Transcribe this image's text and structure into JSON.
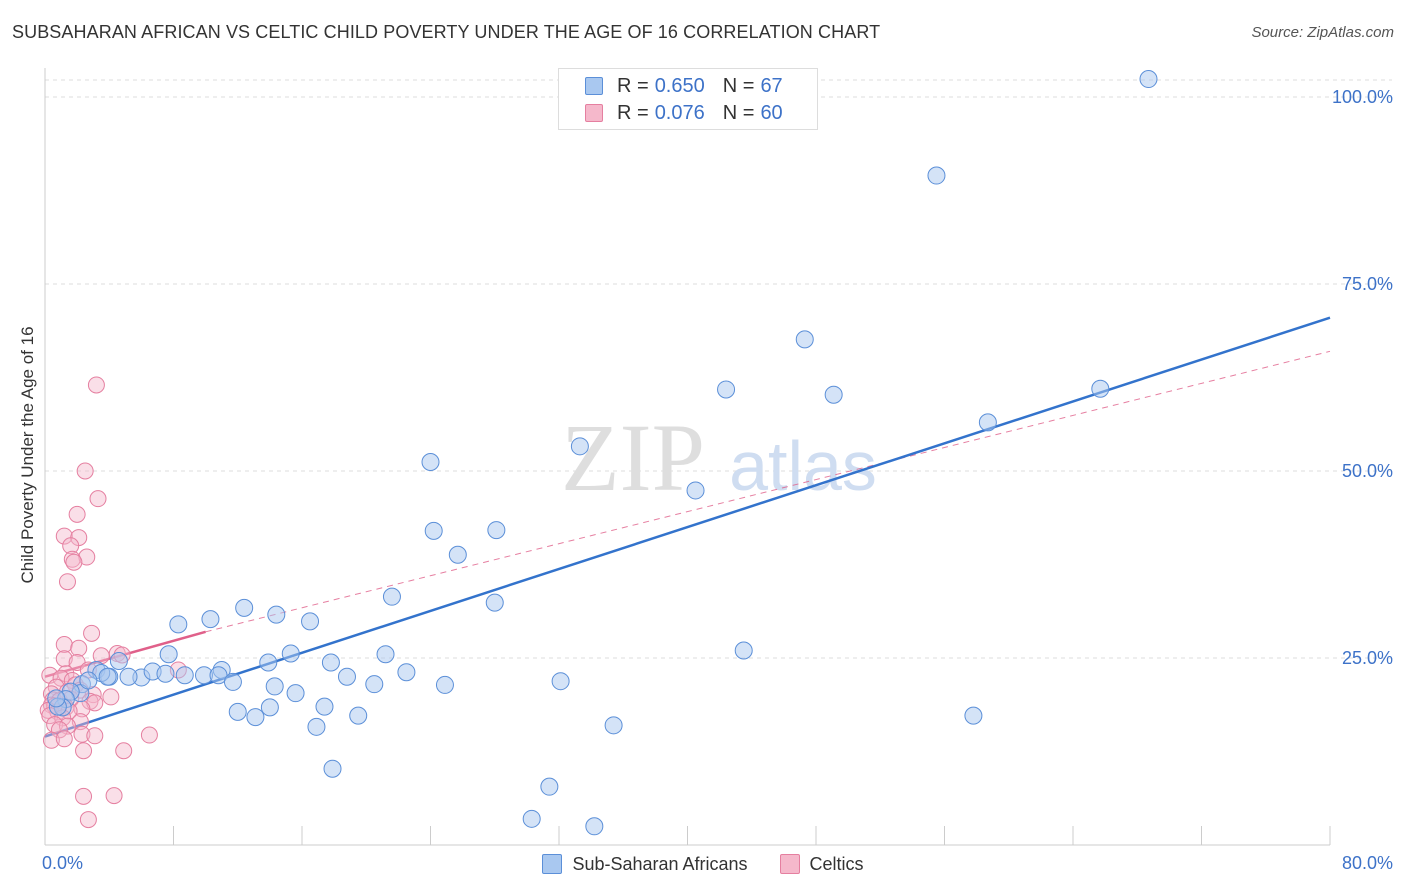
{
  "title": "SUBSAHARAN AFRICAN VS CELTIC CHILD POVERTY UNDER THE AGE OF 16 CORRELATION CHART",
  "source": "Source: ZipAtlas.com",
  "watermark": {
    "zip": "ZIP",
    "atlas": "atlas"
  },
  "legend_top": {
    "r_label": "R =",
    "n_label": "N =",
    "series": [
      {
        "r": "0.650",
        "n": "67"
      },
      {
        "r": "0.076",
        "n": "60"
      }
    ]
  },
  "colors": {
    "blue_fill": "#a9c8f0",
    "blue_stroke": "#5b8fd8",
    "blue_line": "#3373cc",
    "pink_fill": "#f5b8cb",
    "pink_stroke": "#e57fa0",
    "pink_line": "#e0608a",
    "axis_text": "#3d72c8",
    "grid": "#dddddd"
  },
  "chart_data": {
    "type": "scatter",
    "title": "SUBSAHARAN AFRICAN VS CELTIC CHILD POVERTY UNDER THE AGE OF 16 CORRELATION CHART",
    "xlabel": "",
    "ylabel": "Child Poverty Under the Age of 16",
    "xlim": [
      0,
      80
    ],
    "ylim": [
      0,
      100
    ],
    "x_tick_labels": {
      "min": "0.0%",
      "max": "80.0%"
    },
    "y_ticks": [
      {
        "value": 25,
        "label": "25.0%"
      },
      {
        "value": 50,
        "label": "50.0%"
      },
      {
        "value": 75,
        "label": "75.0%"
      },
      {
        "value": 100,
        "label": "100.0%"
      }
    ],
    "series": [
      {
        "name": "Sub-Saharan Africans",
        "color": "blue",
        "trend": {
          "x": [
            0,
            80
          ],
          "y": [
            14.5,
            70.5
          ],
          "style": "solid"
        },
        "points": [
          [
            68.7,
            102.4
          ],
          [
            55.5,
            89.5
          ],
          [
            47.3,
            67.6
          ],
          [
            49.1,
            60.2
          ],
          [
            42.4,
            60.9
          ],
          [
            65.7,
            61.0
          ],
          [
            58.7,
            56.5
          ],
          [
            33.3,
            53.3
          ],
          [
            24.0,
            51.2
          ],
          [
            40.5,
            47.4
          ],
          [
            24.2,
            42.0
          ],
          [
            28.1,
            42.1
          ],
          [
            25.7,
            38.8
          ],
          [
            21.6,
            33.2
          ],
          [
            28.0,
            32.4
          ],
          [
            12.4,
            31.7
          ],
          [
            10.3,
            30.2
          ],
          [
            8.3,
            29.5
          ],
          [
            14.4,
            30.8
          ],
          [
            16.5,
            29.9
          ],
          [
            43.5,
            26.0
          ],
          [
            4.6,
            24.6
          ],
          [
            7.7,
            25.5
          ],
          [
            11.0,
            23.4
          ],
          [
            13.9,
            24.4
          ],
          [
            15.3,
            25.6
          ],
          [
            21.2,
            25.5
          ],
          [
            3.2,
            23.4
          ],
          [
            4.0,
            22.5
          ],
          [
            6.0,
            22.4
          ],
          [
            8.7,
            22.7
          ],
          [
            9.9,
            22.7
          ],
          [
            10.8,
            22.7
          ],
          [
            11.7,
            21.8
          ],
          [
            6.7,
            23.2
          ],
          [
            7.5,
            22.9
          ],
          [
            2.3,
            21.5
          ],
          [
            3.5,
            23.0
          ],
          [
            3.9,
            22.5
          ],
          [
            5.2,
            22.5
          ],
          [
            18.8,
            22.5
          ],
          [
            17.8,
            24.4
          ],
          [
            22.5,
            23.1
          ],
          [
            14.3,
            21.2
          ],
          [
            15.6,
            20.3
          ],
          [
            24.9,
            21.4
          ],
          [
            20.5,
            21.5
          ],
          [
            2.2,
            20.3
          ],
          [
            2.7,
            22.0
          ],
          [
            1.6,
            20.5
          ],
          [
            14.0,
            18.4
          ],
          [
            12.0,
            17.8
          ],
          [
            32.1,
            21.9
          ],
          [
            1.3,
            19.5
          ],
          [
            1.1,
            18.4
          ],
          [
            0.8,
            18.5
          ],
          [
            0.7,
            19.6
          ],
          [
            13.1,
            17.1
          ],
          [
            19.5,
            17.3
          ],
          [
            17.4,
            18.5
          ],
          [
            16.9,
            15.8
          ],
          [
            57.8,
            17.3
          ],
          [
            35.4,
            16.0
          ],
          [
            17.9,
            10.2
          ],
          [
            31.4,
            7.8
          ],
          [
            30.3,
            3.5
          ],
          [
            34.2,
            2.5
          ]
        ]
      },
      {
        "name": "Celtics",
        "color": "pink",
        "trend": {
          "x": [
            0,
            10
          ],
          "y": [
            22.5,
            28.5
          ],
          "style": "solid",
          "extension_x": [
            10,
            80
          ],
          "extension_y": [
            28.5,
            66.0
          ]
        },
        "points": [
          [
            3.2,
            61.5
          ],
          [
            2.5,
            50.0
          ],
          [
            3.3,
            46.3
          ],
          [
            2.0,
            44.2
          ],
          [
            1.2,
            41.3
          ],
          [
            2.1,
            41.1
          ],
          [
            1.6,
            40.0
          ],
          [
            2.6,
            38.5
          ],
          [
            1.7,
            38.2
          ],
          [
            1.8,
            37.8
          ],
          [
            1.4,
            35.2
          ],
          [
            2.9,
            28.3
          ],
          [
            1.2,
            26.8
          ],
          [
            2.1,
            26.3
          ],
          [
            3.5,
            25.3
          ],
          [
            4.5,
            25.6
          ],
          [
            4.8,
            25.4
          ],
          [
            1.2,
            24.9
          ],
          [
            2.0,
            24.4
          ],
          [
            0.3,
            22.7
          ],
          [
            1.3,
            22.9
          ],
          [
            2.7,
            23.4
          ],
          [
            8.3,
            23.4
          ],
          [
            1.0,
            22.3
          ],
          [
            1.7,
            22.0
          ],
          [
            1.9,
            21.4
          ],
          [
            0.7,
            21.1
          ],
          [
            0.4,
            20.2
          ],
          [
            1.4,
            20.5
          ],
          [
            2.2,
            20.7
          ],
          [
            3.0,
            20.1
          ],
          [
            4.1,
            19.8
          ],
          [
            0.5,
            19.4
          ],
          [
            0.9,
            19.3
          ],
          [
            1.6,
            19.5
          ],
          [
            2.8,
            19.2
          ],
          [
            3.1,
            19.0
          ],
          [
            0.4,
            18.7
          ],
          [
            0.6,
            18.6
          ],
          [
            1.3,
            18.4
          ],
          [
            2.3,
            18.2
          ],
          [
            0.2,
            18.0
          ],
          [
            0.8,
            17.8
          ],
          [
            1.5,
            17.9
          ],
          [
            0.3,
            17.3
          ],
          [
            1.1,
            17.0
          ],
          [
            2.2,
            16.5
          ],
          [
            0.6,
            16.1
          ],
          [
            1.4,
            15.9
          ],
          [
            0.9,
            15.4
          ],
          [
            2.3,
            14.8
          ],
          [
            3.1,
            14.6
          ],
          [
            6.5,
            14.7
          ],
          [
            0.4,
            14.0
          ],
          [
            1.2,
            14.2
          ],
          [
            2.4,
            12.6
          ],
          [
            4.9,
            12.6
          ],
          [
            2.4,
            6.5
          ],
          [
            4.3,
            6.6
          ],
          [
            2.7,
            3.4
          ]
        ]
      }
    ]
  }
}
